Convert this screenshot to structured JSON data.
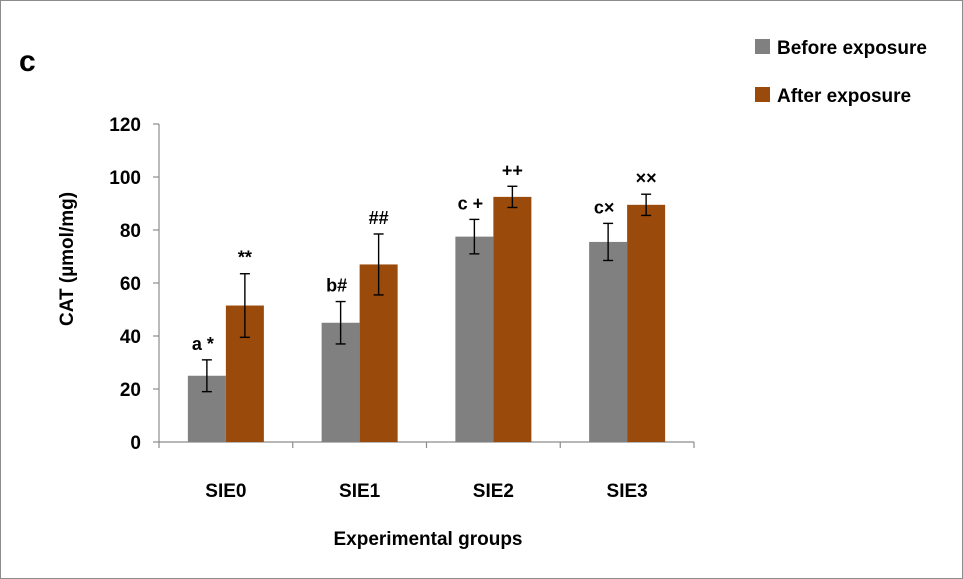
{
  "panel_label": "c",
  "chart_data": {
    "type": "bar",
    "xlabel": "Experimental groups",
    "ylabel": "CAT (µmol/mg)",
    "ylim": [
      0,
      120
    ],
    "yticks": [
      "0",
      "20",
      "40",
      "60",
      "80",
      "100",
      "120"
    ],
    "categories": [
      "SIE0",
      "SIE1",
      "SIE2",
      "SIE3"
    ],
    "legend_position": "top-right",
    "series": [
      {
        "name": "Before exposure",
        "color": "#808080",
        "values": [
          25,
          45,
          77.5,
          75.5
        ],
        "errors": [
          6,
          8,
          6.5,
          7
        ],
        "annotations": [
          "a *",
          "b#",
          "c +",
          "c×"
        ]
      },
      {
        "name": "After exposure",
        "color": "#9a4a0b",
        "values": [
          51.5,
          67,
          92.5,
          89.5
        ],
        "errors": [
          12,
          11.5,
          4,
          4
        ],
        "annotations": [
          "**",
          "##",
          "++",
          "××"
        ]
      }
    ]
  }
}
